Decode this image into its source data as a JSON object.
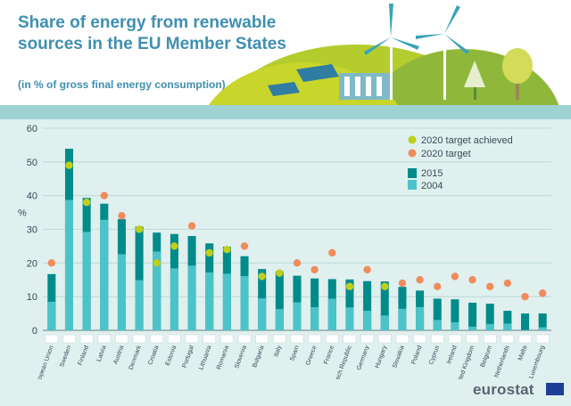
{
  "header": {
    "title": "Share of energy from renewable sources in the EU Member States",
    "subtitle": "(in % of gross final energy consumption)"
  },
  "brand": {
    "logo_text": "eurostat"
  },
  "colors": {
    "bar_2015": "#008b8b",
    "bar_2004": "#4cc3c9",
    "target_achieved": "#bfcf1b",
    "target": "#f08c5c",
    "title": "#3f8fb0",
    "background": "#dff0ef",
    "band": "#9fd3d3"
  },
  "icons": [
    "wind-turbine-icon",
    "solar-panel-icon",
    "dam-icon",
    "tree-icon",
    "hill-icon",
    "eu-flag-icon"
  ],
  "chart_data": {
    "type": "bar",
    "ylabel": "%",
    "ylim": [
      0,
      60
    ],
    "yticks": [
      0,
      10,
      20,
      30,
      40,
      50,
      60
    ],
    "grid": true,
    "legend": {
      "placement": "top-right",
      "markers": [
        "2020 target achieved",
        "2020 target"
      ],
      "series": [
        "2015",
        "2004"
      ]
    },
    "categories": [
      "European Union",
      "Sweden",
      "Finland",
      "Latvia",
      "Austria",
      "Denmark",
      "Croatia",
      "Estonia",
      "Portugal",
      "Lithuania",
      "Romania",
      "Slovenia",
      "Bulgaria",
      "Italy",
      "Spain",
      "Greece",
      "France",
      "Czech Republic",
      "Germany",
      "Hungary",
      "Slovakia",
      "Poland",
      "Cyprus",
      "Ireland",
      "United Kingdom",
      "Belgium",
      "Netherlands",
      "Malta",
      "Luxembourg"
    ],
    "series": [
      {
        "name": "2015",
        "values": [
          16.7,
          53.9,
          39.3,
          37.6,
          33.0,
          30.8,
          29.0,
          28.6,
          28.0,
          25.8,
          24.8,
          22.0,
          18.2,
          17.5,
          16.2,
          15.4,
          15.2,
          15.1,
          14.6,
          14.5,
          12.9,
          11.8,
          9.4,
          9.2,
          8.2,
          7.9,
          5.8,
          5.0,
          5.0
        ]
      },
      {
        "name": "2004",
        "values": [
          8.5,
          38.7,
          29.2,
          32.8,
          22.6,
          14.9,
          23.4,
          18.4,
          19.2,
          17.2,
          16.8,
          16.1,
          9.5,
          6.3,
          8.3,
          6.9,
          9.4,
          6.8,
          5.8,
          4.4,
          6.4,
          6.9,
          3.1,
          2.4,
          1.1,
          1.9,
          2.0,
          0.1,
          0.9
        ]
      },
      {
        "name": "2020 target",
        "values": [
          20,
          49,
          38,
          40,
          34,
          30,
          20,
          25,
          31,
          23,
          24,
          25,
          16,
          17,
          20,
          18,
          23,
          13,
          18,
          13,
          14,
          15,
          13,
          16,
          15,
          13,
          14,
          10,
          11
        ]
      }
    ],
    "target_achieved": [
      false,
      true,
      true,
      false,
      false,
      true,
      true,
      true,
      false,
      true,
      true,
      false,
      true,
      true,
      false,
      false,
      false,
      true,
      false,
      true,
      false,
      false,
      false,
      false,
      false,
      false,
      false,
      false,
      false
    ]
  }
}
